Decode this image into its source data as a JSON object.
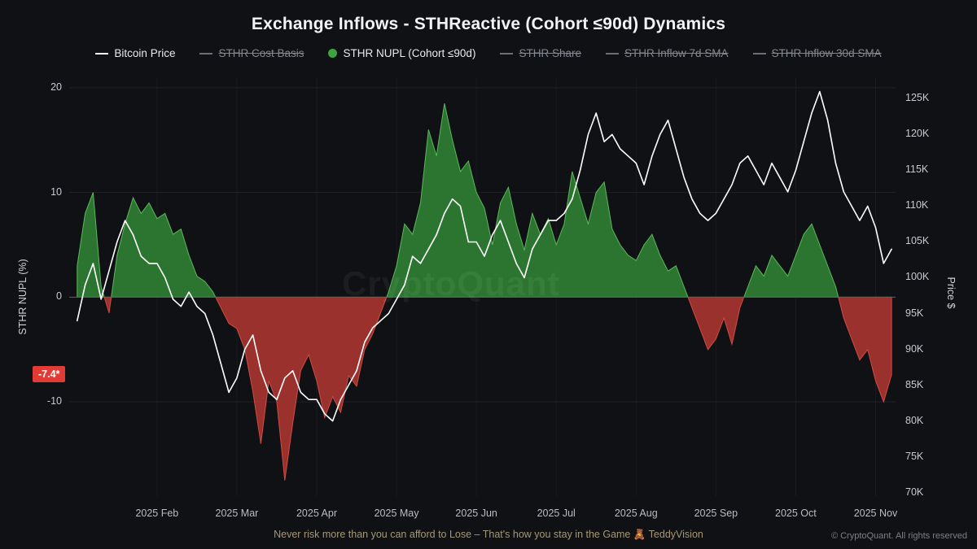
{
  "title": "Exchange Inflows - STHReactive (Cohort ≤90d) Dynamics",
  "legend": {
    "items": [
      {
        "label": "Bitcoin Price",
        "active": true,
        "swatch": "white-line"
      },
      {
        "label": "STHR Cost Basis",
        "active": false,
        "swatch": "gray-line"
      },
      {
        "label": "STHR NUPL (Cohort ≤90d)",
        "active": true,
        "swatch": "green-dot"
      },
      {
        "label": "STHR Share",
        "active": false,
        "swatch": "gray-line"
      },
      {
        "label": "STHR Inflow 7d SMA",
        "active": false,
        "swatch": "gray-line"
      },
      {
        "label": "STHR Inflow 30d SMA",
        "active": false,
        "swatch": "gray-line"
      }
    ]
  },
  "badge": {
    "text": "-7.4*",
    "color": "#e23b36"
  },
  "watermark": "CryptoQuant",
  "footer": {
    "disclaimer": "Never risk more than you can afford to Lose – That's how you stay in the Game 🧸 TeddyVision",
    "copyright": "© CryptoQuant. All rights reserved"
  },
  "chart_data": {
    "type": "area+line",
    "title": "Exchange Inflows - STHReactive (Cohort ≤90d) Dynamics",
    "x_unit": "months since 2025-01-01",
    "x_start": 0,
    "x_step": 0.1,
    "x_domain": [
      -0.1,
      10.25
    ],
    "x_ticks": [
      {
        "v": 1,
        "label": "2025 Feb"
      },
      {
        "v": 2,
        "label": "2025 Mar"
      },
      {
        "v": 3,
        "label": "2025 Apr"
      },
      {
        "v": 4,
        "label": "2025 May"
      },
      {
        "v": 5,
        "label": "2025 Jun"
      },
      {
        "v": 6,
        "label": "2025 Jul"
      },
      {
        "v": 7,
        "label": "2025 Aug"
      },
      {
        "v": 8,
        "label": "2025 Sep"
      },
      {
        "v": 9,
        "label": "2025 Oct"
      },
      {
        "v": 10,
        "label": "2025 Nov"
      }
    ],
    "left_axis": {
      "label": "STHR NUPL (%)",
      "ticks": [
        20,
        10,
        0,
        -10
      ],
      "range": [
        21,
        -19
      ]
    },
    "right_axis": {
      "label": "Price $",
      "tick_values": [
        125,
        120,
        115,
        110,
        105,
        100,
        95,
        90,
        85,
        80,
        75,
        70
      ],
      "tick_suffix": "K",
      "range": [
        128,
        69.5
      ]
    },
    "grid": true,
    "legend_position": "top",
    "current_value": -7.4,
    "series": [
      {
        "name": "STHR NUPL (Cohort ≤90d)",
        "type": "area",
        "axis": "left",
        "positive_color": "#2f7e33",
        "negative_color": "#a63430",
        "positive_edge": "#5cb85c",
        "negative_edge": "#d14b45",
        "values": [
          3,
          8,
          10,
          1,
          -1.5,
          4,
          7,
          9.5,
          8,
          9,
          7.5,
          8,
          6,
          6.5,
          4,
          2,
          1.5,
          0.5,
          -1,
          -2.5,
          -3,
          -5,
          -9,
          -14,
          -8,
          -10,
          -17.5,
          -12,
          -7,
          -5.5,
          -8,
          -11.5,
          -9.5,
          -11,
          -7.5,
          -8.5,
          -5,
          -3.5,
          -1.5,
          0.5,
          3,
          7,
          6,
          9,
          16,
          13.5,
          18.5,
          15,
          12,
          13,
          10,
          8.5,
          5,
          9,
          10.5,
          7,
          4.5,
          8,
          6,
          7.5,
          5,
          7,
          12,
          9.5,
          7,
          10,
          11,
          6.5,
          5,
          4,
          3.5,
          5,
          6,
          4,
          2.5,
          3,
          1,
          -1,
          -3,
          -5,
          -4,
          -2,
          -4.5,
          -1,
          1,
          3,
          2,
          4,
          3,
          2,
          4,
          6,
          7,
          5,
          3,
          1,
          -2,
          -4,
          -6,
          -5,
          -8,
          -10,
          -7.4
        ]
      },
      {
        "name": "Bitcoin Price",
        "type": "line",
        "axis": "right",
        "unit": "K USD",
        "color": "#ffffff",
        "values": [
          94,
          99,
          102,
          97,
          101,
          105,
          108,
          106,
          103,
          102,
          102,
          100,
          97,
          96,
          98,
          96,
          95,
          92,
          88,
          84,
          86,
          90,
          92,
          87,
          84,
          83,
          86,
          87,
          84,
          83,
          83,
          81,
          80,
          83,
          85,
          87,
          91,
          93,
          94,
          95,
          97,
          99,
          103,
          102,
          104,
          106,
          109,
          111,
          110,
          105,
          105,
          103,
          106,
          108,
          105,
          102,
          100,
          104,
          106,
          108,
          108,
          109,
          111,
          115,
          120,
          123,
          119,
          120,
          118,
          117,
          116,
          113,
          117,
          120,
          122,
          118,
          114,
          111,
          109,
          108,
          109,
          111,
          113,
          116,
          117,
          115,
          113,
          116,
          114,
          112,
          115,
          119,
          123,
          126,
          122,
          116,
          112,
          110,
          108,
          110,
          107,
          102,
          104
        ]
      }
    ]
  }
}
